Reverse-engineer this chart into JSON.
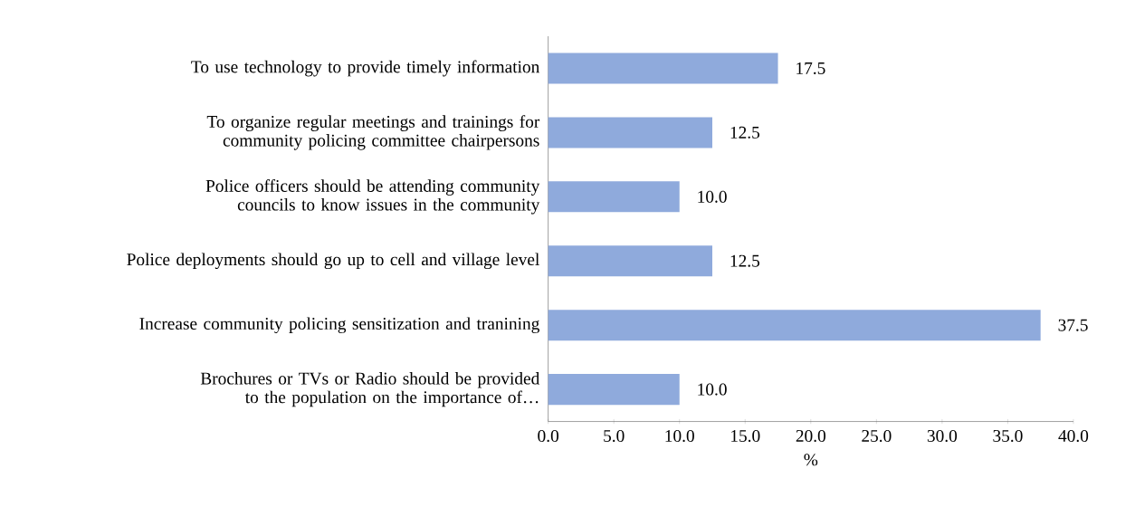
{
  "chart_data": {
    "type": "bar",
    "orientation": "horizontal",
    "xlabel": "%",
    "categories": [
      "To use technology to provide timely information",
      "To organize regular meetings and trainings for community policing committee chairpersons",
      "Police officers should be attending community councils to know issues in the community",
      "Police deployments should go up to cell and village level",
      "Increase community policing sensitization and tranining",
      "Brochures or TVs or Radio should be provided to the population on the importance of…"
    ],
    "values": [
      17.5,
      12.5,
      10.0,
      12.5,
      37.5,
      10.0
    ],
    "value_labels": [
      "17.5",
      "12.5",
      "10.0",
      "12.5",
      "37.5",
      "10.0"
    ],
    "color": "#8faadc",
    "xlim": [
      0,
      40
    ],
    "xticks": [
      {
        "value": 0,
        "label": "0.0"
      },
      {
        "value": 5,
        "label": "5.0"
      },
      {
        "value": 10,
        "label": "10.0"
      },
      {
        "value": 15,
        "label": "15.0"
      },
      {
        "value": 20,
        "label": "20.0"
      },
      {
        "value": 25,
        "label": "25.0"
      },
      {
        "value": 30,
        "label": "30.0"
      },
      {
        "value": 35,
        "label": "35.0"
      },
      {
        "value": 40,
        "label": "40.0"
      }
    ],
    "grid": false,
    "legend": false
  }
}
